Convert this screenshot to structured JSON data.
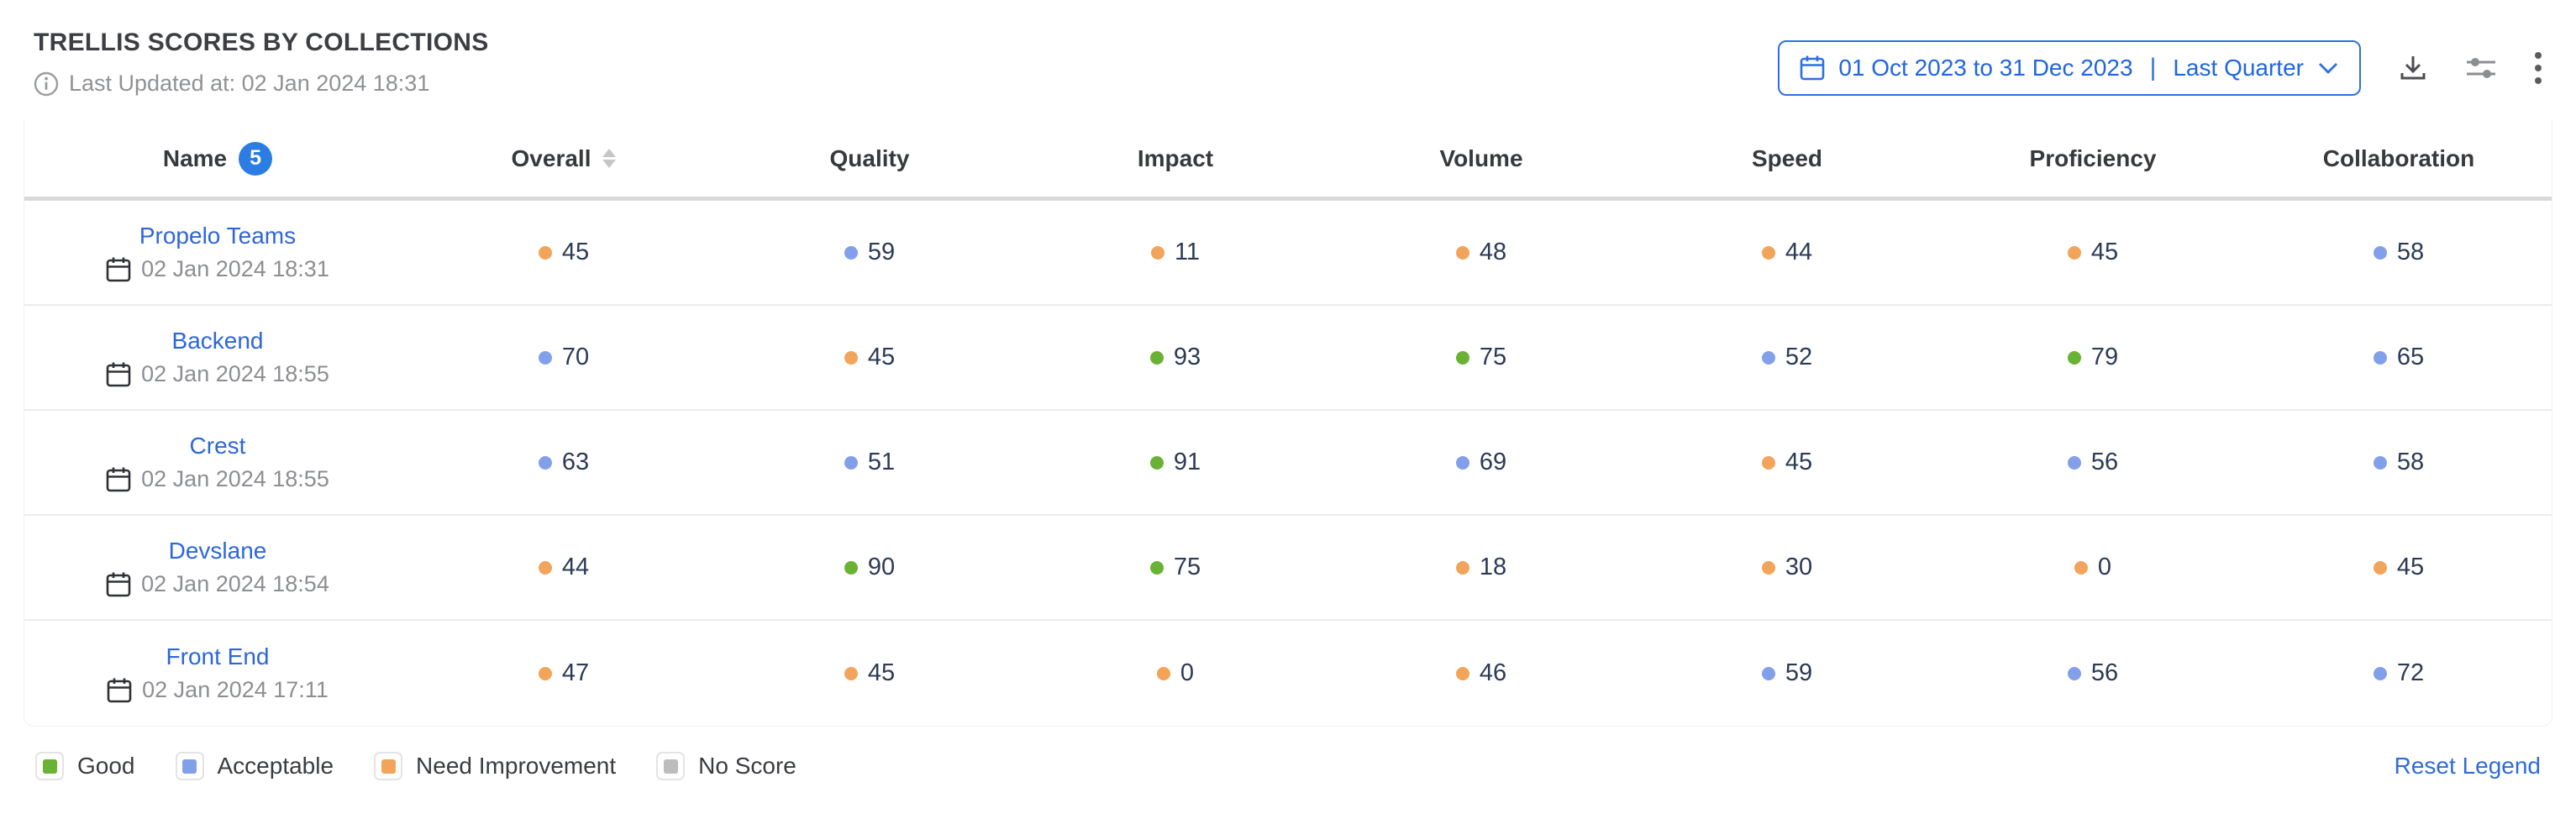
{
  "header": {
    "title": "TRELLIS SCORES BY COLLECTIONS",
    "last_updated": "Last Updated at: 02 Jan 2024 18:31",
    "date_range": "01 Oct 2023 to 31 Dec 2023",
    "date_preset": "Last Quarter"
  },
  "table": {
    "columns": {
      "name": "Name",
      "overall": "Overall",
      "quality": "Quality",
      "impact": "Impact",
      "volume": "Volume",
      "speed": "Speed",
      "proficiency": "Proficiency",
      "collaboration": "Collaboration"
    },
    "name_count": "5",
    "rows": [
      {
        "name": "Propelo Teams",
        "date": "02 Jan 2024 18:31",
        "scores": [
          {
            "v": "45",
            "c": "orange"
          },
          {
            "v": "59",
            "c": "blue"
          },
          {
            "v": "11",
            "c": "orange"
          },
          {
            "v": "48",
            "c": "orange"
          },
          {
            "v": "44",
            "c": "orange"
          },
          {
            "v": "45",
            "c": "orange"
          },
          {
            "v": "58",
            "c": "blue"
          }
        ]
      },
      {
        "name": "Backend",
        "date": "02 Jan 2024 18:55",
        "scores": [
          {
            "v": "70",
            "c": "blue"
          },
          {
            "v": "45",
            "c": "orange"
          },
          {
            "v": "93",
            "c": "green"
          },
          {
            "v": "75",
            "c": "green"
          },
          {
            "v": "52",
            "c": "blue"
          },
          {
            "v": "79",
            "c": "green"
          },
          {
            "v": "65",
            "c": "blue"
          }
        ]
      },
      {
        "name": "Crest",
        "date": "02 Jan 2024 18:55",
        "scores": [
          {
            "v": "63",
            "c": "blue"
          },
          {
            "v": "51",
            "c": "blue"
          },
          {
            "v": "91",
            "c": "green"
          },
          {
            "v": "69",
            "c": "blue"
          },
          {
            "v": "45",
            "c": "orange"
          },
          {
            "v": "56",
            "c": "blue"
          },
          {
            "v": "58",
            "c": "blue"
          }
        ]
      },
      {
        "name": "Devslane",
        "date": "02 Jan 2024 18:54",
        "scores": [
          {
            "v": "44",
            "c": "orange"
          },
          {
            "v": "90",
            "c": "green"
          },
          {
            "v": "75",
            "c": "green"
          },
          {
            "v": "18",
            "c": "orange"
          },
          {
            "v": "30",
            "c": "orange"
          },
          {
            "v": "0",
            "c": "orange"
          },
          {
            "v": "45",
            "c": "orange"
          }
        ]
      },
      {
        "name": "Front End",
        "date": "02 Jan 2024 17:11",
        "scores": [
          {
            "v": "47",
            "c": "orange"
          },
          {
            "v": "45",
            "c": "orange"
          },
          {
            "v": "0",
            "c": "orange"
          },
          {
            "v": "46",
            "c": "orange"
          },
          {
            "v": "59",
            "c": "blue"
          },
          {
            "v": "56",
            "c": "blue"
          },
          {
            "v": "72",
            "c": "blue"
          }
        ]
      }
    ]
  },
  "legend": {
    "items": [
      {
        "label": "Good",
        "color": "green"
      },
      {
        "label": "Acceptable",
        "color": "blue"
      },
      {
        "label": "Need Improvement",
        "color": "orange"
      },
      {
        "label": "No Score",
        "color": "gray"
      }
    ],
    "reset_label": "Reset Legend"
  },
  "colors": {
    "good": "#69b233",
    "acceptable": "#82a0ea",
    "need_improvement": "#f2a45a",
    "no_score": "#bcbcbc",
    "link_blue": "#2d66db",
    "accent_blue": "#2e6fe0",
    "value_text": "#2b3a55"
  }
}
